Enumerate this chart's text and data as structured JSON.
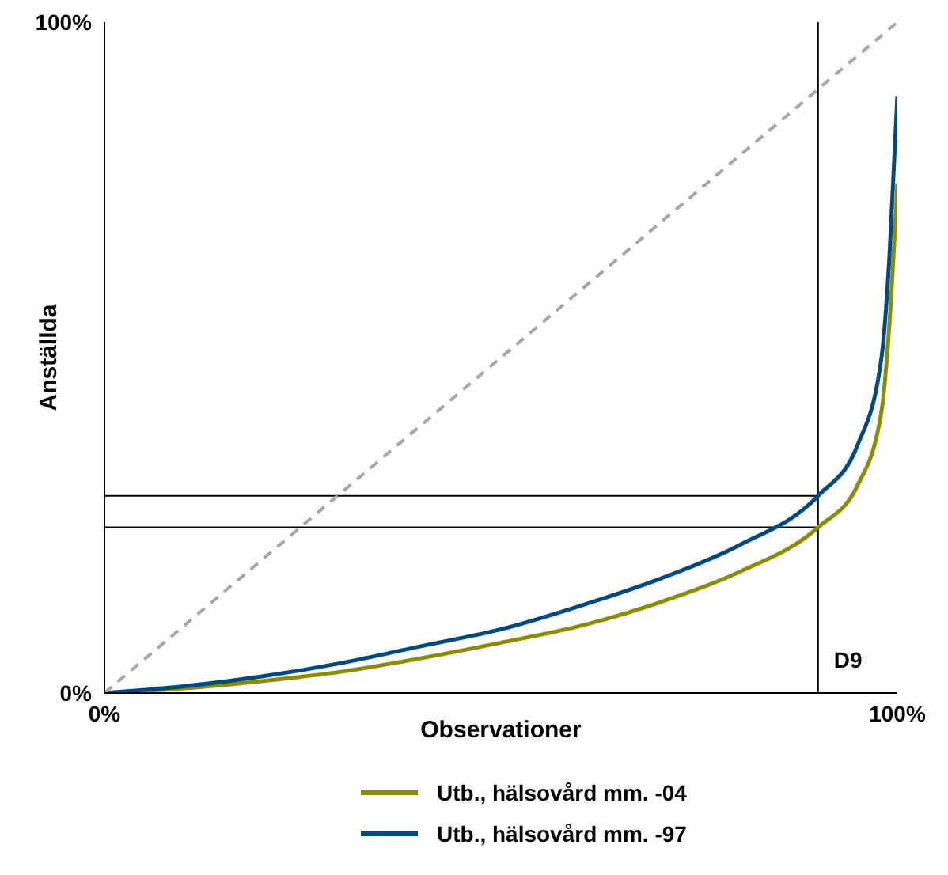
{
  "chart_data": {
    "type": "line",
    "xlabel": "Observationer",
    "ylabel": "Anställda",
    "xlim": [
      0,
      100
    ],
    "ylim": [
      0,
      100
    ],
    "xticks": [
      {
        "value": 0,
        "label": "0%"
      },
      {
        "value": 100,
        "label": "100%"
      }
    ],
    "yticks": [
      {
        "value": 0,
        "label": "0%"
      },
      {
        "value": 100,
        "label": "100%"
      }
    ],
    "grid": false,
    "legend": "bottom",
    "marker": "none",
    "series": [
      {
        "name": "Utb., hälsovård mm. -04",
        "color": "#8c8c00",
        "x": [
          0,
          10,
          20,
          30,
          40,
          50,
          60,
          70,
          80,
          90,
          95,
          98,
          99,
          100
        ],
        "values": [
          0,
          0.7,
          1.8,
          3.2,
          5.2,
          7.5,
          10,
          13.5,
          18,
          24.7,
          31,
          42,
          55,
          76
        ]
      },
      {
        "name": "Utb., hälsovård mm. -97",
        "color": "#004a80",
        "x": [
          0,
          10,
          20,
          30,
          40,
          50,
          60,
          70,
          80,
          90,
          95,
          98,
          99,
          100
        ],
        "values": [
          0,
          1,
          2.5,
          4.5,
          7,
          9.5,
          13,
          17,
          22,
          29.4,
          37,
          50,
          65,
          89
        ]
      },
      {
        "color": "#a6a6a6",
        "line_style": "dashed",
        "x": [
          0,
          100
        ],
        "values": [
          0,
          100
        ]
      }
    ],
    "ref_lines": [
      {
        "axis": "x",
        "value": 90,
        "label": "D9",
        "color": "#000000"
      },
      {
        "axis": "y",
        "value": 29.4,
        "color": "#000000"
      },
      {
        "axis": "y",
        "value": 24.7,
        "color": "#000000"
      }
    ]
  }
}
